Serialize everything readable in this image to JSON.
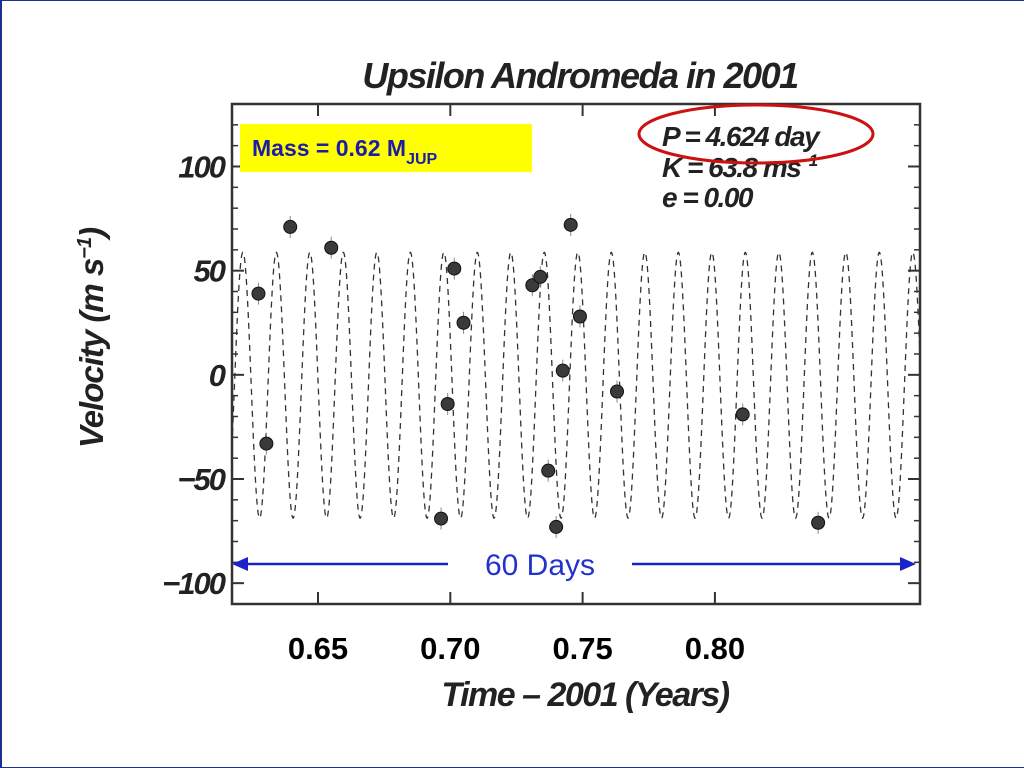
{
  "chart_data": {
    "type": "scatter",
    "title": "Upsilon Andromeda  in  2001",
    "xlabel": "Time – 2001  (Years)",
    "ylabel_main": "Velocity  (m s",
    "ylabel_sup": "−1",
    "ylabel_close": ")",
    "xlim": [
      0.6175,
      0.8775
    ],
    "ylim": [
      -110,
      130
    ],
    "x_ticks": [
      {
        "value": 0.65,
        "label": "0.65"
      },
      {
        "value": 0.7,
        "label": "0.70"
      },
      {
        "value": 0.75,
        "label": "0.75"
      },
      {
        "value": 0.8,
        "label": "0.80"
      }
    ],
    "y_ticks": [
      {
        "value": 100,
        "label": "100"
      },
      {
        "value": 50,
        "label": "50"
      },
      {
        "value": 0,
        "label": "0"
      },
      {
        "value": -50,
        "label": "−50"
      },
      {
        "value": -100,
        "label": "−100"
      }
    ],
    "grid": false,
    "fit": {
      "style": "dashed",
      "period_years": 0.012659,
      "amplitude": 63.8,
      "offset": -5,
      "phase_ref_x": 0.6216
    },
    "points": [
      {
        "x": 0.6275,
        "y": 39
      },
      {
        "x": 0.6305,
        "y": -33
      },
      {
        "x": 0.6395,
        "y": 71
      },
      {
        "x": 0.655,
        "y": 61
      },
      {
        "x": 0.6965,
        "y": -69
      },
      {
        "x": 0.699,
        "y": -14
      },
      {
        "x": 0.7015,
        "y": 51
      },
      {
        "x": 0.705,
        "y": 25
      },
      {
        "x": 0.731,
        "y": 43
      },
      {
        "x": 0.734,
        "y": 47
      },
      {
        "x": 0.737,
        "y": -46
      },
      {
        "x": 0.74,
        "y": -73
      },
      {
        "x": 0.7425,
        "y": 2
      },
      {
        "x": 0.7455,
        "y": 72
      },
      {
        "x": 0.749,
        "y": 28
      },
      {
        "x": 0.763,
        "y": -8
      },
      {
        "x": 0.8105,
        "y": -19
      },
      {
        "x": 0.839,
        "y": -71
      }
    ],
    "annotations": {
      "mass_label": "Mass = 0.62 M",
      "mass_sub": "JUP",
      "period": "P = 4.624 day",
      "K_main": "K = 63.8 ms",
      "K_sup": "−1",
      "ecc": "e = 0.00",
      "span_label": "60  Days"
    },
    "colors": {
      "points": "#3a3a3a",
      "fit_line": "#333333",
      "arrow": "#1a22cc",
      "highlight_ellipse": "#cc1111",
      "mass_box": "#ffff00",
      "mass_text": "#1c1caa"
    }
  }
}
